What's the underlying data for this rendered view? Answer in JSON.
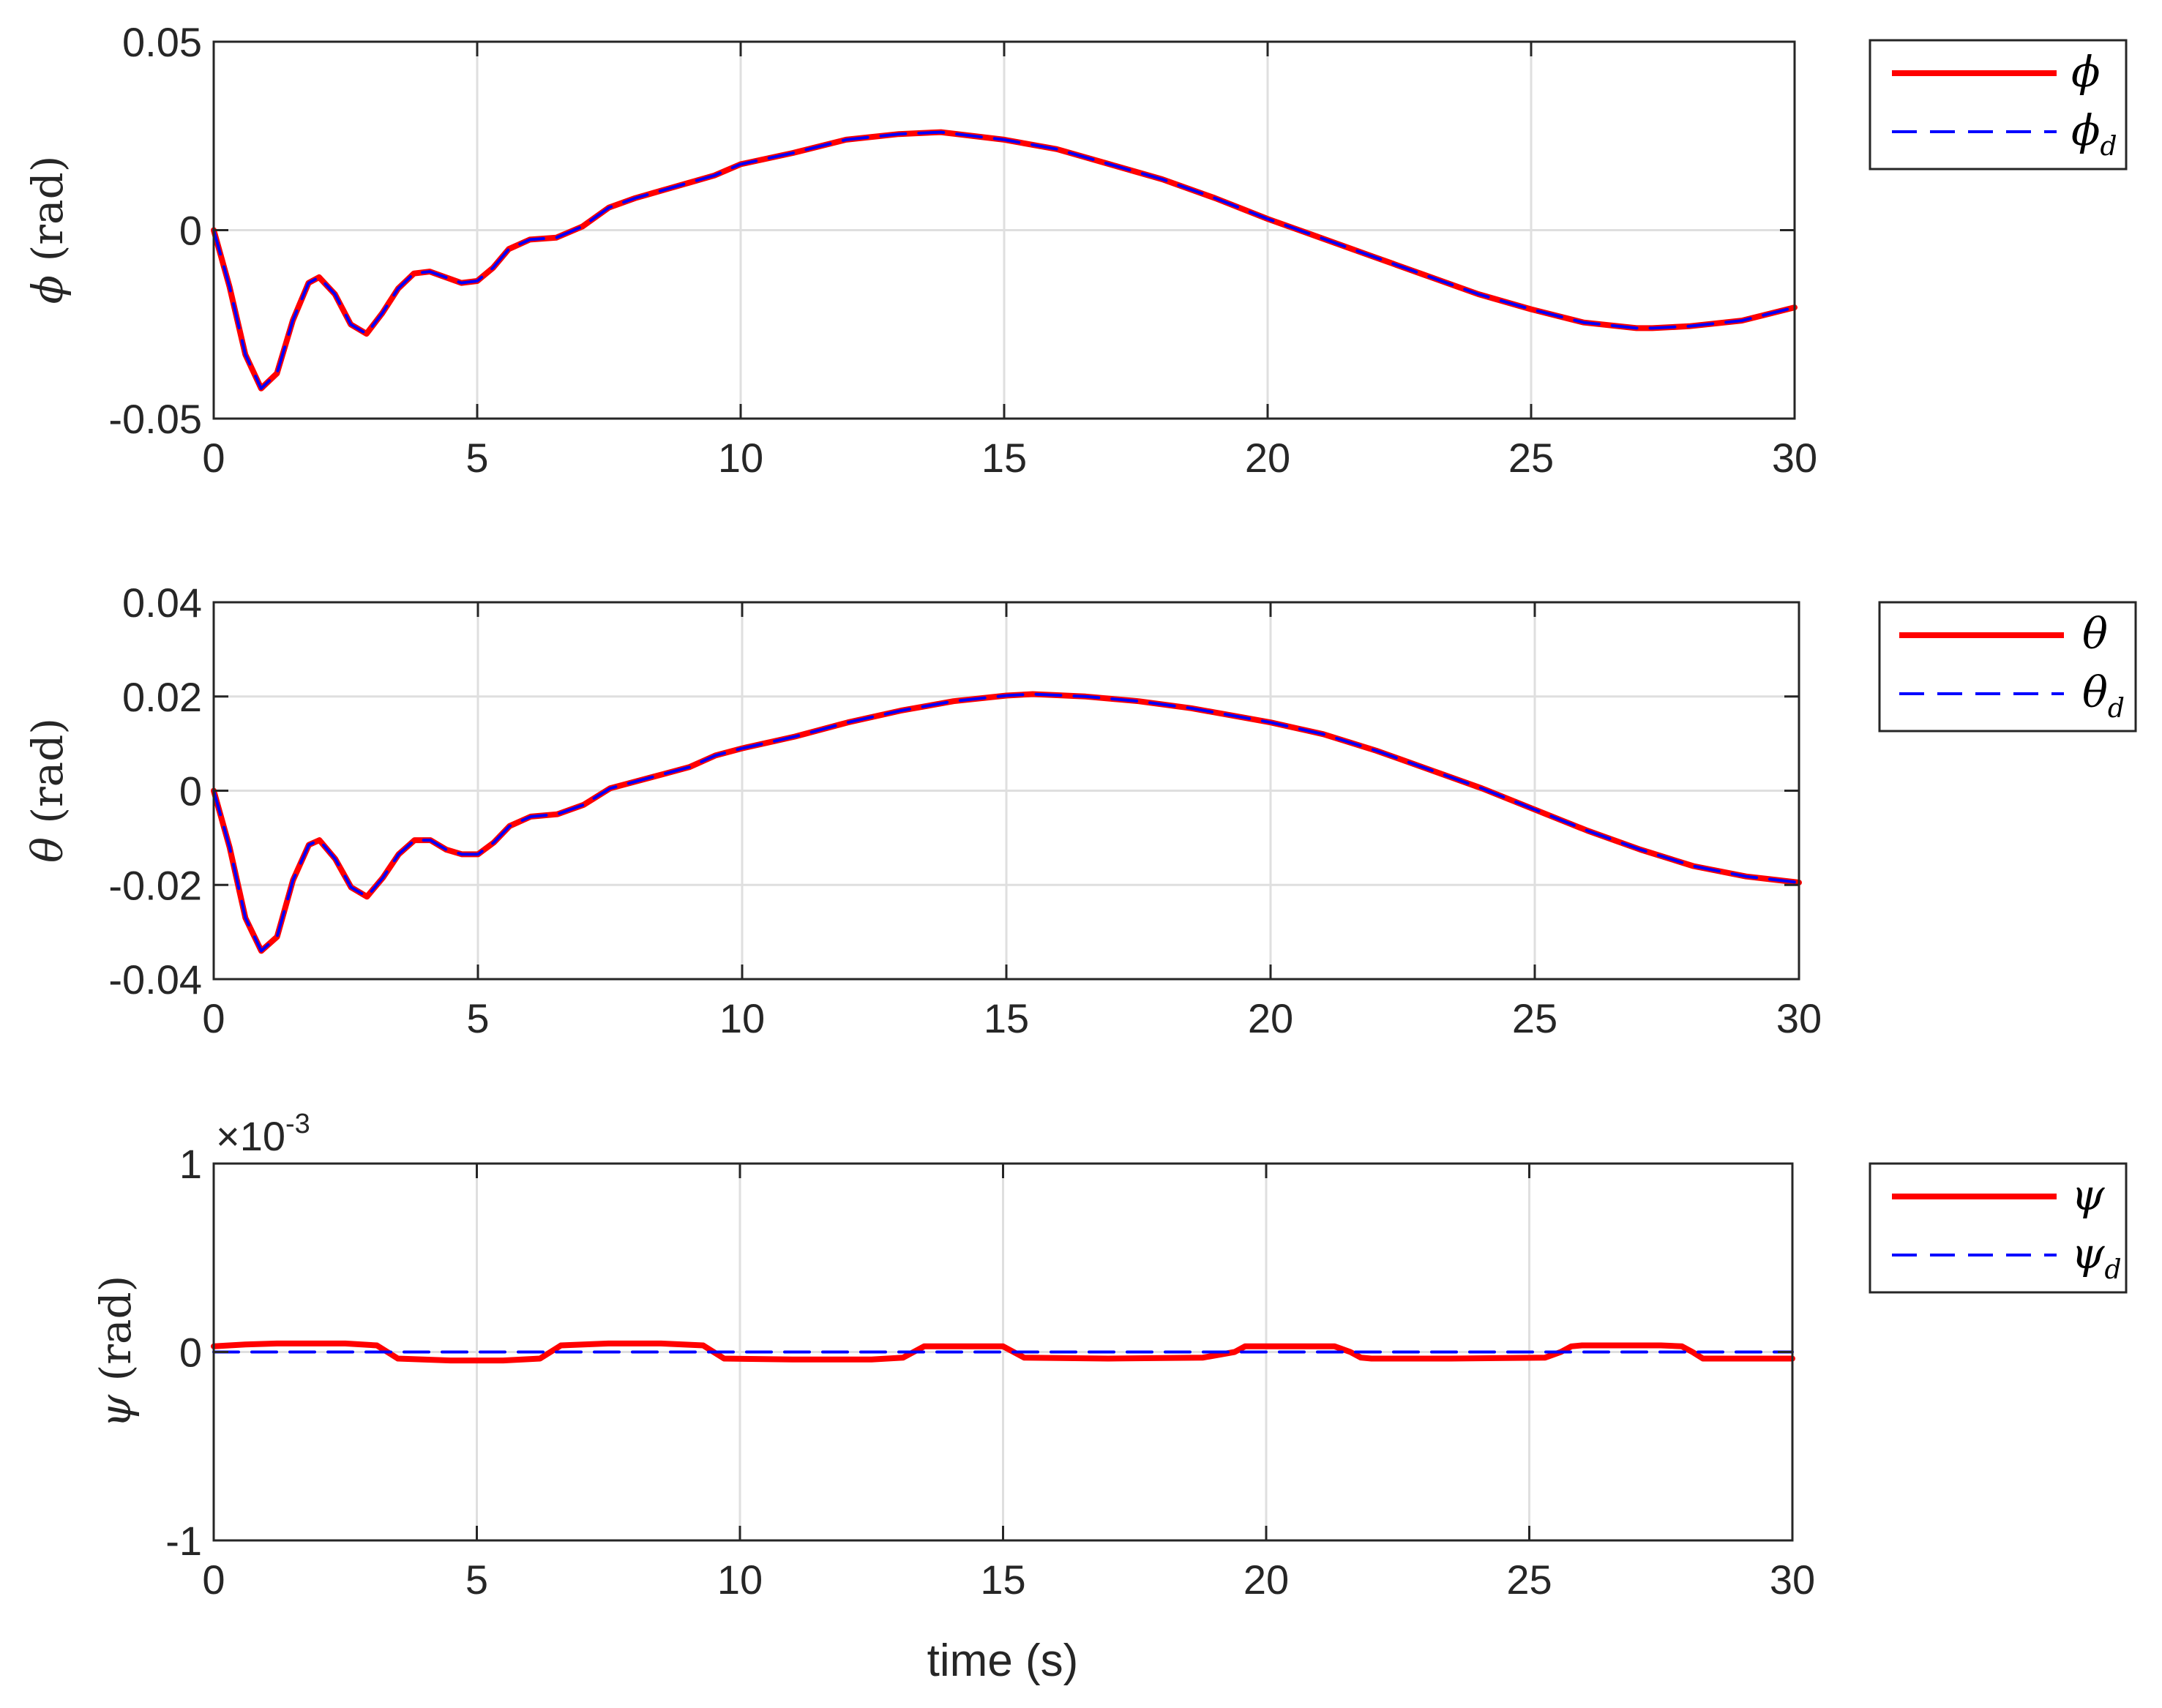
{
  "chart_data": [
    {
      "type": "line",
      "ylabel_symbol": "ϕ",
      "ylabel_unit": "(rad)",
      "xlabel": "",
      "xlim": [
        0,
        30
      ],
      "ylim": [
        -0.05,
        0.05
      ],
      "xticks": [
        0,
        5,
        10,
        15,
        20,
        25,
        30
      ],
      "yticks": [
        -0.05,
        0,
        0.05
      ],
      "ytick_labels": [
        "-0.05",
        "0",
        "0.05"
      ],
      "exponent": "",
      "grid": true,
      "legend_position": "outside-right-top",
      "series": [
        {
          "name": "ϕ",
          "sub": "",
          "style": "solid",
          "color": "#ff0000",
          "x": [
            0,
            0.3,
            0.6,
            0.9,
            1.2,
            1.5,
            1.8,
            2.0,
            2.3,
            2.6,
            2.9,
            3.2,
            3.5,
            3.8,
            4.1,
            4.4,
            4.7,
            5.0,
            5.3,
            5.6,
            6.0,
            6.5,
            7.0,
            7.5,
            8.0,
            8.5,
            9.0,
            9.5,
            10.0,
            11.0,
            12.0,
            13.0,
            13.8,
            15.0,
            16.0,
            17.0,
            18.0,
            19.0,
            20.0,
            21.0,
            22.0,
            23.0,
            24.0,
            25.0,
            26.0,
            27.0,
            27.3,
            28.0,
            29.0,
            30.0
          ],
          "y": [
            0,
            -0.015,
            -0.033,
            -0.042,
            -0.038,
            -0.024,
            -0.014,
            -0.0125,
            -0.017,
            -0.025,
            -0.0275,
            -0.022,
            -0.0155,
            -0.0115,
            -0.011,
            -0.0125,
            -0.014,
            -0.0135,
            -0.01,
            -0.005,
            -0.0025,
            -0.002,
            0.001,
            0.006,
            0.0085,
            0.0105,
            0.0125,
            0.0145,
            0.0175,
            0.0205,
            0.024,
            0.0255,
            0.026,
            0.024,
            0.0215,
            0.0175,
            0.0135,
            0.0085,
            0.003,
            -0.002,
            -0.007,
            -0.012,
            -0.017,
            -0.021,
            -0.0245,
            -0.026,
            -0.026,
            -0.0255,
            -0.024,
            -0.0205
          ]
        },
        {
          "name": "ϕ",
          "sub": "d",
          "style": "dashed",
          "color": "#0000ff",
          "x": [
            0,
            0.3,
            0.6,
            0.9,
            1.2,
            1.5,
            1.8,
            2.0,
            2.3,
            2.6,
            2.9,
            3.2,
            3.5,
            3.8,
            4.1,
            4.4,
            4.7,
            5.0,
            5.3,
            5.6,
            6.0,
            6.5,
            7.0,
            7.5,
            8.0,
            8.5,
            9.0,
            9.5,
            10.0,
            11.0,
            12.0,
            13.0,
            13.8,
            15.0,
            16.0,
            17.0,
            18.0,
            19.0,
            20.0,
            21.0,
            22.0,
            23.0,
            24.0,
            25.0,
            26.0,
            27.0,
            27.3,
            28.0,
            29.0,
            30.0
          ],
          "y": [
            0,
            -0.015,
            -0.033,
            -0.042,
            -0.038,
            -0.024,
            -0.014,
            -0.0125,
            -0.017,
            -0.025,
            -0.0275,
            -0.022,
            -0.0155,
            -0.0115,
            -0.011,
            -0.0125,
            -0.014,
            -0.0135,
            -0.01,
            -0.005,
            -0.0025,
            -0.002,
            0.001,
            0.006,
            0.0085,
            0.0105,
            0.0125,
            0.0145,
            0.0175,
            0.0205,
            0.024,
            0.0255,
            0.026,
            0.024,
            0.0215,
            0.0175,
            0.0135,
            0.0085,
            0.003,
            -0.002,
            -0.007,
            -0.012,
            -0.017,
            -0.021,
            -0.0245,
            -0.026,
            -0.026,
            -0.0255,
            -0.024,
            -0.0205
          ]
        }
      ]
    },
    {
      "type": "line",
      "ylabel_symbol": "θ",
      "ylabel_unit": "(rad)",
      "xlabel": "",
      "xlim": [
        0,
        30
      ],
      "ylim": [
        -0.04,
        0.04
      ],
      "xticks": [
        0,
        5,
        10,
        15,
        20,
        25,
        30
      ],
      "yticks": [
        -0.04,
        -0.02,
        0,
        0.02,
        0.04
      ],
      "ytick_labels": [
        "-0.04",
        "-0.02",
        "0",
        "0.02",
        "0.04"
      ],
      "exponent": "",
      "grid": true,
      "legend_position": "outside-right-top",
      "series": [
        {
          "name": "θ",
          "sub": "",
          "style": "solid",
          "color": "#ff0000",
          "x": [
            0,
            0.3,
            0.6,
            0.9,
            1.2,
            1.5,
            1.8,
            2.0,
            2.3,
            2.6,
            2.9,
            3.2,
            3.5,
            3.8,
            4.1,
            4.4,
            4.7,
            5.0,
            5.3,
            5.6,
            6.0,
            6.5,
            7.0,
            7.5,
            8.0,
            8.5,
            9.0,
            9.5,
            10.0,
            11.0,
            12.0,
            13.0,
            14.0,
            15.0,
            15.5,
            16.5,
            17.5,
            18.5,
            19.5,
            20.0,
            21.0,
            22.0,
            23.0,
            24.0,
            25.0,
            26.0,
            27.0,
            28.0,
            29.0,
            30.0
          ],
          "y": [
            0,
            -0.012,
            -0.027,
            -0.034,
            -0.031,
            -0.019,
            -0.0115,
            -0.0105,
            -0.0145,
            -0.0205,
            -0.0225,
            -0.0185,
            -0.0135,
            -0.0105,
            -0.0105,
            -0.0125,
            -0.0135,
            -0.0135,
            -0.011,
            -0.0075,
            -0.0055,
            -0.005,
            -0.003,
            0.0005,
            0.002,
            0.0035,
            0.005,
            0.0075,
            0.009,
            0.0115,
            0.0145,
            0.017,
            0.019,
            0.0202,
            0.0205,
            0.02,
            0.019,
            0.0175,
            0.0155,
            0.0145,
            0.012,
            0.0085,
            0.0045,
            0.0005,
            -0.004,
            -0.0085,
            -0.0125,
            -0.016,
            -0.0182,
            -0.0195
          ]
        },
        {
          "name": "θ",
          "sub": "d",
          "style": "dashed",
          "color": "#0000ff",
          "x": [
            0,
            0.3,
            0.6,
            0.9,
            1.2,
            1.5,
            1.8,
            2.0,
            2.3,
            2.6,
            2.9,
            3.2,
            3.5,
            3.8,
            4.1,
            4.4,
            4.7,
            5.0,
            5.3,
            5.6,
            6.0,
            6.5,
            7.0,
            7.5,
            8.0,
            8.5,
            9.0,
            9.5,
            10.0,
            11.0,
            12.0,
            13.0,
            14.0,
            15.0,
            15.5,
            16.5,
            17.5,
            18.5,
            19.5,
            20.0,
            21.0,
            22.0,
            23.0,
            24.0,
            25.0,
            26.0,
            27.0,
            28.0,
            29.0,
            30.0
          ],
          "y": [
            0,
            -0.012,
            -0.027,
            -0.034,
            -0.031,
            -0.019,
            -0.0115,
            -0.0105,
            -0.0145,
            -0.0205,
            -0.0225,
            -0.0185,
            -0.0135,
            -0.0105,
            -0.0105,
            -0.0125,
            -0.0135,
            -0.0135,
            -0.011,
            -0.0075,
            -0.0055,
            -0.005,
            -0.003,
            0.0005,
            0.002,
            0.0035,
            0.005,
            0.0075,
            0.009,
            0.0115,
            0.0145,
            0.017,
            0.019,
            0.0202,
            0.0205,
            0.02,
            0.019,
            0.0175,
            0.0155,
            0.0145,
            0.012,
            0.0085,
            0.0045,
            0.0005,
            -0.004,
            -0.0085,
            -0.0125,
            -0.016,
            -0.0182,
            -0.0195
          ]
        }
      ]
    },
    {
      "type": "line",
      "ylabel_symbol": "ψ",
      "ylabel_unit": "(rad)",
      "xlabel": "time (s)",
      "xlim": [
        0,
        30
      ],
      "ylim": [
        -1,
        1
      ],
      "xticks": [
        0,
        5,
        10,
        15,
        20,
        25,
        30
      ],
      "yticks": [
        -1,
        0,
        1
      ],
      "ytick_labels": [
        "-1",
        "0",
        "1"
      ],
      "exponent_base": "×10",
      "exponent": "-3",
      "grid": true,
      "legend_position": "outside-right-top",
      "series": [
        {
          "name": "ψ",
          "sub": "",
          "style": "solid",
          "color": "#ff0000",
          "x": [
            0,
            0.6,
            1.2,
            2.5,
            3.1,
            3.3,
            3.5,
            4.5,
            5.5,
            6.2,
            6.4,
            6.6,
            7.5,
            8.5,
            9.3,
            9.5,
            9.7,
            11,
            12.5,
            13.1,
            13.3,
            13.5,
            14.5,
            15.0,
            15.2,
            15.4,
            17,
            18.8,
            19.4,
            19.6,
            19.8,
            21.3,
            21.6,
            21.8,
            22.0,
            23.5,
            25.3,
            25.6,
            25.8,
            26.0,
            27.5,
            27.9,
            28.1,
            28.3,
            30.0
          ],
          "y": [
            0.03,
            0.04,
            0.045,
            0.045,
            0.035,
            0,
            -0.035,
            -0.045,
            -0.045,
            -0.035,
            0,
            0.035,
            0.045,
            0.045,
            0.035,
            0,
            -0.035,
            -0.04,
            -0.04,
            -0.03,
            0,
            0.03,
            0.03,
            0.03,
            0,
            -0.03,
            -0.035,
            -0.03,
            0,
            0.03,
            0.03,
            0.03,
            0,
            -0.03,
            -0.035,
            -0.035,
            -0.03,
            0,
            0.03,
            0.035,
            0.035,
            0.03,
            0,
            -0.035,
            -0.035
          ]
        },
        {
          "name": "ψ",
          "sub": "d",
          "style": "dashed",
          "color": "#0000ff",
          "x": [
            0,
            30
          ],
          "y": [
            0,
            0
          ]
        }
      ]
    }
  ]
}
